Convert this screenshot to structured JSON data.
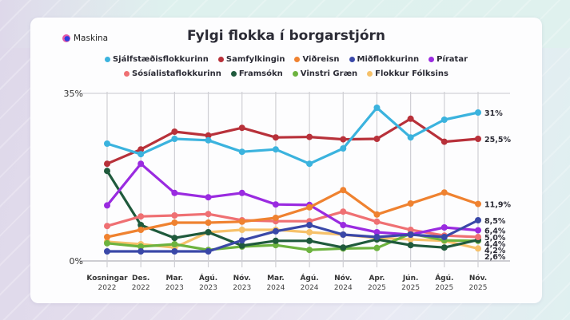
{
  "brand": {
    "name": "Maskina"
  },
  "chart_data": {
    "type": "line",
    "title": "Fylgi flokka í borgarstjórn",
    "xlabel": "",
    "ylabel": "",
    "ylim": [
      0,
      35
    ],
    "y_ticks": [
      "0%",
      "35%"
    ],
    "grid": "vertical",
    "legend_position": "top",
    "categories": [
      {
        "line1": "Kosningar",
        "line2": "2022"
      },
      {
        "line1": "Des.",
        "line2": "2022"
      },
      {
        "line1": "Mar.",
        "line2": "2023"
      },
      {
        "line1": "Ágú.",
        "line2": "2023"
      },
      {
        "line1": "Nóv.",
        "line2": "2023"
      },
      {
        "line1": "Mar.",
        "line2": "2024"
      },
      {
        "line1": "Ágú.",
        "line2": "2024"
      },
      {
        "line1": "Nóv.",
        "line2": "2024"
      },
      {
        "line1": "Apr.",
        "line2": "2025"
      },
      {
        "line1": "Jún.",
        "line2": "2025"
      },
      {
        "line1": "Ágú.",
        "line2": "2025"
      },
      {
        "line1": "Nóv.",
        "line2": "2025"
      }
    ],
    "series": [
      {
        "name": "Sjálfstæðisflokkurinn",
        "color": "#3bb3de",
        "values": [
          24.5,
          22.3,
          25.5,
          25.2,
          22.8,
          23.3,
          20.3,
          23.5,
          32.0,
          25.8,
          29.5,
          31.0
        ],
        "end_label": "31%"
      },
      {
        "name": "Samfylkingin",
        "color": "#b8313a",
        "values": [
          20.3,
          23.3,
          27.0,
          26.2,
          27.8,
          25.8,
          25.9,
          25.4,
          25.5,
          29.7,
          24.9,
          25.5
        ],
        "end_label": "25,5%"
      },
      {
        "name": "Viðreisn",
        "color": "#ef8230",
        "values": [
          5.0,
          6.5,
          8.0,
          8.0,
          8.2,
          9.0,
          11.2,
          14.8,
          9.7,
          12.0,
          14.3,
          11.9
        ],
        "end_label": "11,9%"
      },
      {
        "name": "Miðflokkurinn",
        "color": "#3a48a8",
        "values": [
          2.0,
          2.0,
          2.0,
          2.0,
          4.3,
          6.2,
          7.5,
          5.5,
          5.0,
          5.5,
          5.0,
          8.5
        ],
        "end_label": "8,5%"
      },
      {
        "name": "Píratar",
        "color": "#9a2be0",
        "values": [
          11.6,
          20.3,
          14.2,
          13.3,
          14.2,
          11.8,
          11.7,
          7.5,
          6.0,
          5.5,
          7.0,
          6.4
        ],
        "end_label": "6,4%"
      },
      {
        "name": "Sósíalistaflokkurinn",
        "color": "#ef7073",
        "values": [
          7.3,
          9.3,
          9.5,
          9.8,
          8.5,
          8.3,
          8.3,
          10.3,
          8.2,
          6.5,
          5.3,
          5.0
        ],
        "end_label": "5,0%"
      },
      {
        "name": "Framsókn",
        "color": "#1f5a3c",
        "values": [
          18.8,
          7.5,
          4.8,
          6.0,
          3.2,
          4.2,
          4.2,
          2.8,
          4.5,
          3.3,
          2.8,
          4.4
        ],
        "end_label": "4,4%"
      },
      {
        "name": "Vinstri Græn",
        "color": "#6db33f",
        "values": [
          3.7,
          3.0,
          3.5,
          2.3,
          3.0,
          3.3,
          2.3,
          2.6,
          2.7,
          5.7,
          4.3,
          4.2
        ],
        "end_label": "4,2%"
      },
      {
        "name": "Flokkur Fólksins",
        "color": "#f6c16a",
        "values": [
          4.0,
          3.5,
          2.8,
          6.0,
          6.5,
          6.5,
          6.0,
          5.5,
          4.8,
          4.5,
          4.2,
          2.6
        ],
        "end_label": "2,6%"
      }
    ]
  }
}
